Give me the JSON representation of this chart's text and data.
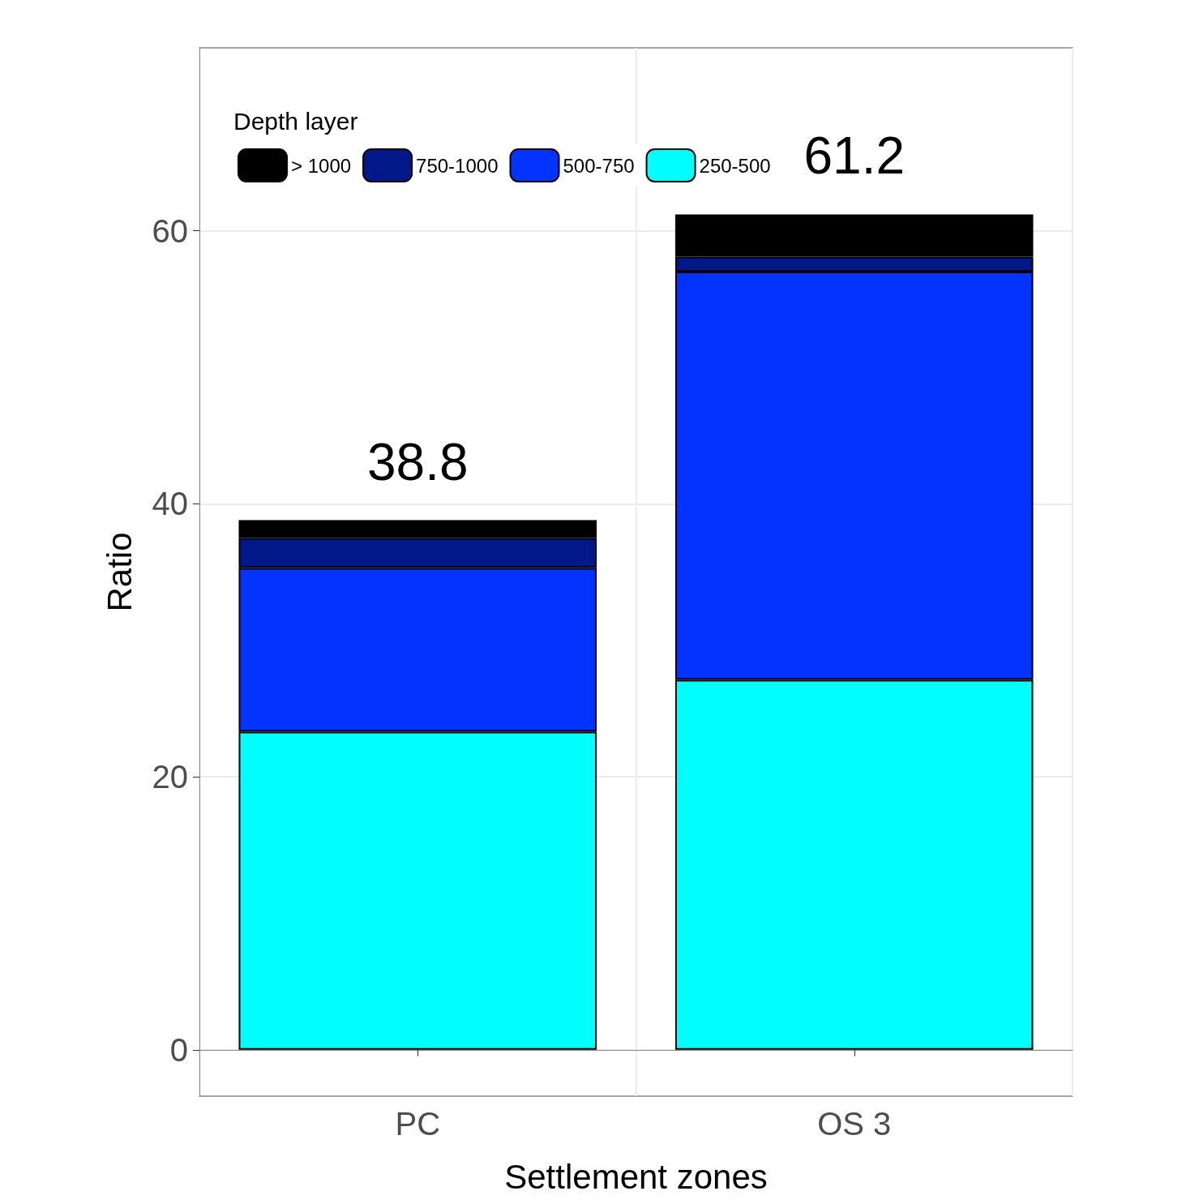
{
  "chart_data": {
    "type": "bar",
    "xlabel": "Settlement zones",
    "ylabel": "Ratio",
    "legend_title": "Depth layer",
    "categories": [
      "PC",
      "OS 3"
    ],
    "stacked": true,
    "series": [
      {
        "name": "250-500",
        "color": "#00ffff",
        "values": [
          23.3,
          27.1
        ]
      },
      {
        "name": "500-750",
        "color": "#0433ff",
        "values": [
          12.0,
          29.9
        ]
      },
      {
        "name": "750-1000",
        "color": "#011888",
        "values": [
          2.2,
          1.1
        ]
      },
      {
        "name": "> 1000",
        "color": "#000000",
        "values": [
          1.3,
          3.1
        ]
      }
    ],
    "totals": [
      "38.8",
      "61.2"
    ],
    "ylim": [
      -3.4,
      73.4
    ],
    "yticks": [
      0,
      20,
      40,
      60
    ],
    "grid": true,
    "legend": "top left"
  }
}
